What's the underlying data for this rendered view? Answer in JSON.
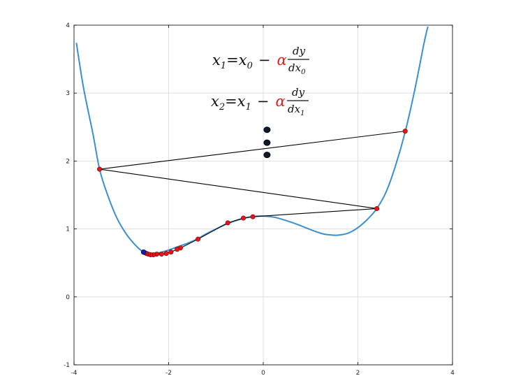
{
  "chart_data": {
    "type": "line",
    "title": "",
    "xlabel": "",
    "ylabel": "",
    "xlim": [
      -4,
      4
    ],
    "ylim": [
      -1,
      4
    ],
    "xticks": [
      -4,
      -2,
      0,
      2,
      4
    ],
    "yticks": [
      -1,
      0,
      1,
      2,
      3,
      4
    ],
    "grid": true,
    "curve": {
      "color": "#3a8fd0",
      "points": [
        [
          -3.95,
          3.74
        ],
        [
          -3.8,
          3.08
        ],
        [
          -3.6,
          2.4
        ],
        [
          -3.46,
          1.88
        ],
        [
          -3.3,
          1.52
        ],
        [
          -3.1,
          1.17
        ],
        [
          -2.9,
          0.93
        ],
        [
          -2.7,
          0.76
        ],
        [
          -2.55,
          0.67
        ],
        [
          -2.4,
          0.64
        ],
        [
          -2.2,
          0.65
        ],
        [
          -2.0,
          0.69
        ],
        [
          -1.8,
          0.74
        ],
        [
          -1.6,
          0.79
        ],
        [
          -1.4,
          0.85
        ],
        [
          -1.2,
          0.93
        ],
        [
          -1.0,
          1.0
        ],
        [
          -0.75,
          1.08
        ],
        [
          -0.5,
          1.14
        ],
        [
          -0.25,
          1.18
        ],
        [
          0.0,
          1.19
        ],
        [
          0.25,
          1.17
        ],
        [
          0.5,
          1.12
        ],
        [
          0.75,
          1.06
        ],
        [
          1.0,
          0.99
        ],
        [
          1.25,
          0.93
        ],
        [
          1.45,
          0.91
        ],
        [
          1.6,
          0.91
        ],
        [
          1.8,
          0.94
        ],
        [
          2.0,
          1.02
        ],
        [
          2.2,
          1.14
        ],
        [
          2.4,
          1.3
        ],
        [
          2.6,
          1.55
        ],
        [
          2.8,
          1.94
        ],
        [
          3.0,
          2.43
        ],
        [
          3.2,
          3.04
        ],
        [
          3.4,
          3.74
        ],
        [
          3.48,
          3.98
        ]
      ]
    },
    "iterates": {
      "color": "#e8141c",
      "points": [
        [
          3.0,
          2.44
        ],
        [
          -3.46,
          1.88
        ],
        [
          2.4,
          1.3
        ],
        [
          -0.22,
          1.18
        ],
        [
          -0.42,
          1.16
        ],
        [
          -0.75,
          1.09
        ],
        [
          -1.38,
          0.85
        ],
        [
          -1.75,
          0.72
        ],
        [
          -1.82,
          0.7
        ],
        [
          -1.95,
          0.66
        ],
        [
          -2.05,
          0.64
        ],
        [
          -2.15,
          0.63
        ],
        [
          -2.25,
          0.63
        ],
        [
          -2.32,
          0.62
        ],
        [
          -2.38,
          0.62
        ],
        [
          -2.43,
          0.63
        ],
        [
          -2.47,
          0.64
        ],
        [
          -2.5,
          0.65
        ]
      ],
      "final_point": [
        -2.53,
        0.66
      ],
      "final_color": "#1a16c8"
    },
    "annotation_dots": [
      [
        0.08,
        2.46
      ],
      [
        0.08,
        2.27
      ],
      [
        0.08,
        2.09
      ]
    ],
    "annotations": [
      {
        "lhs_var": "x",
        "lhs_sub": "1",
        "eq": "=",
        "rhs_var": "x",
        "rhs_sub": "0",
        "minus": "−",
        "alpha": "α",
        "numerator": "dy",
        "denominator_var": "dx",
        "denominator_sub": "0"
      },
      {
        "lhs_var": "x",
        "lhs_sub": "2",
        "eq": "=",
        "rhs_var": "x",
        "rhs_sub": "1",
        "minus": "−",
        "alpha": "α",
        "numerator": "dy",
        "denominator_var": "dx",
        "denominator_sub": "1"
      }
    ]
  }
}
